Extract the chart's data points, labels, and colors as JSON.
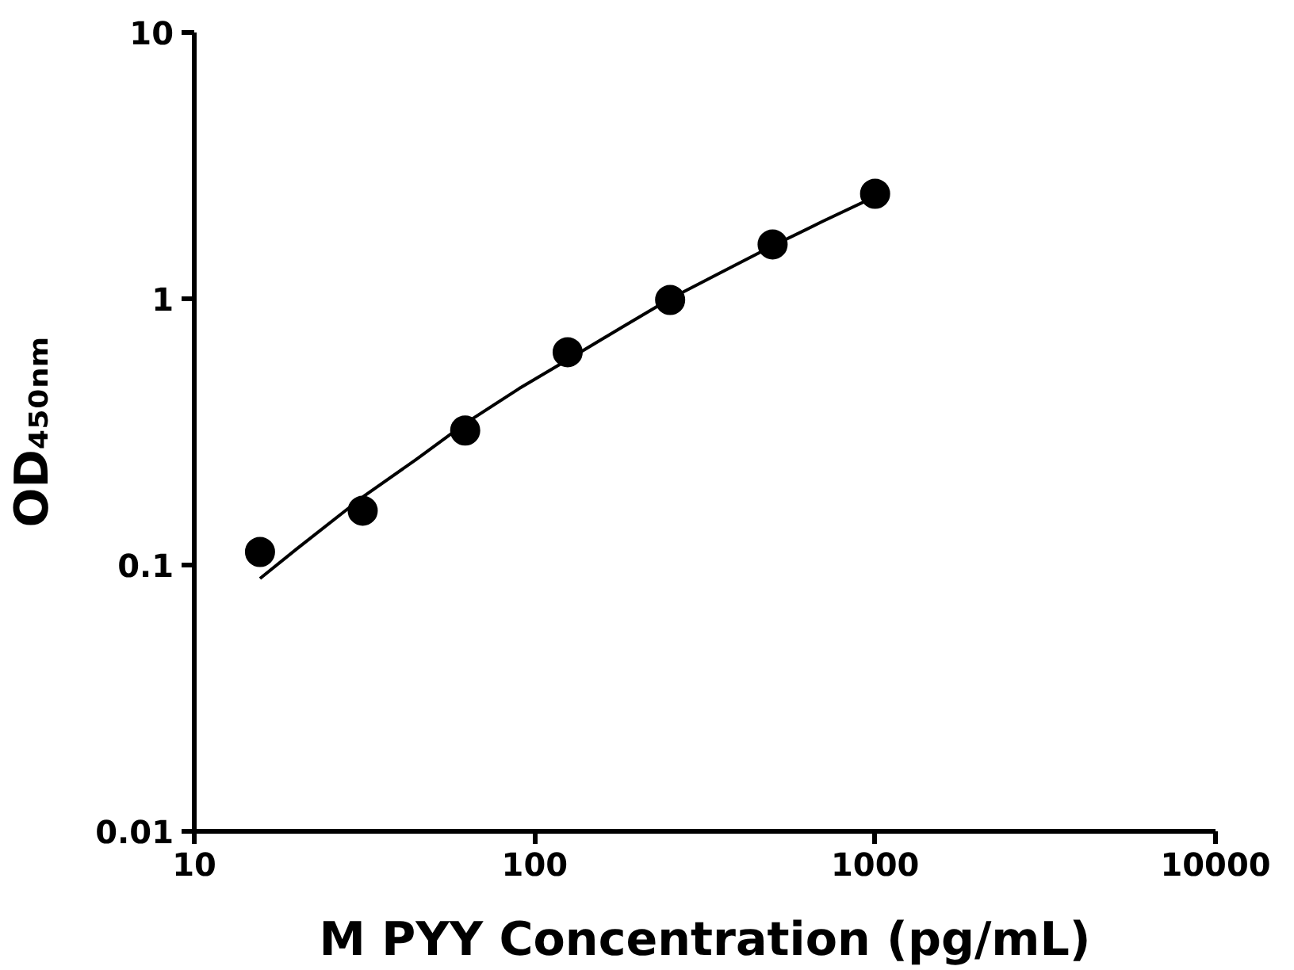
{
  "chart_data": {
    "type": "scatter",
    "xlabel": "M PYY Concentration (pg/mL)",
    "ylabel": "OD₄₅₀ₙₘ",
    "log": "xy",
    "xlim": [
      10,
      10000
    ],
    "ylim": [
      0.01,
      10
    ],
    "xticks": [
      10,
      100,
      1000,
      10000
    ],
    "yticks": [
      0.01,
      0.1,
      1,
      10
    ],
    "grid": false,
    "marker": "circle",
    "series": [
      {
        "color": "#000000",
        "x": [
          15.6,
          31.25,
          62.5,
          125,
          250,
          500,
          1000
        ],
        "values": [
          0.112,
          0.16,
          0.32,
          0.63,
          0.99,
          1.6,
          2.48
        ]
      },
      {
        "type": "line",
        "marker": "none",
        "line_style": "solid",
        "color": "#000000",
        "x": [
          15.6,
          20,
          31.25,
          45,
          62.5,
          90,
          125,
          180,
          250,
          350,
          500,
          700,
          1000
        ],
        "values": [
          0.089,
          0.115,
          0.18,
          0.25,
          0.34,
          0.46,
          0.59,
          0.78,
          1.0,
          1.25,
          1.58,
          1.95,
          2.42
        ]
      }
    ]
  }
}
